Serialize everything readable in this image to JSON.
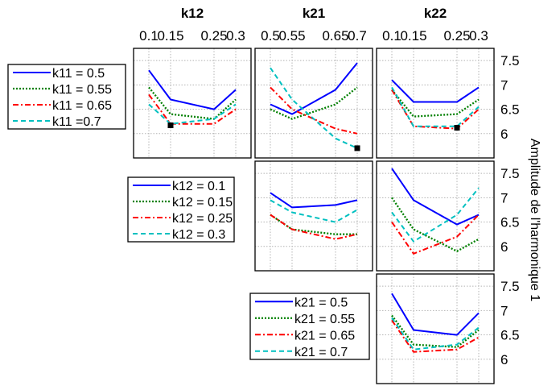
{
  "chart_data": {
    "type": "line",
    "ylabel": "Amplitude de l'harmonique 1",
    "ylim": [
      5.5,
      7.75
    ],
    "yticks": [
      "6",
      "6.5",
      "7",
      "7.5"
    ],
    "grid": true,
    "colors": [
      "#0000ff",
      "#008000",
      "#ff0000",
      "#00c0c0"
    ],
    "columns": [
      {
        "title": "k12",
        "xticks": [
          "0.1",
          "0.15",
          "0.25",
          "0.3"
        ]
      },
      {
        "title": "k21",
        "xticks": [
          "0.5",
          "0.55",
          "0.65",
          "0.7"
        ]
      },
      {
        "title": "k22",
        "xticks": [
          "0.1",
          "0.15",
          "0.25",
          "0.3"
        ]
      }
    ],
    "rows": [
      {
        "legend": {
          "series": [
            "k11 = 0.5",
            "k11 = 0.55",
            "k11 = 0.65",
            "k11 =0.7"
          ]
        }
      },
      {
        "legend": {
          "series": [
            "k12 = 0.1",
            "k12 = 0.15",
            "k12 = 0.25",
            "k12 = 0.3"
          ]
        }
      },
      {
        "legend": {
          "series": [
            "k21 = 0.5",
            "k21 = 0.55",
            "k21 = 0.65",
            "k21 = 0.7"
          ]
        }
      }
    ],
    "panels": [
      {
        "row": 0,
        "col": 0,
        "series": [
          [
            7.3,
            6.7,
            6.5,
            6.9
          ],
          [
            6.95,
            6.4,
            6.3,
            6.7
          ],
          [
            6.8,
            6.2,
            6.2,
            6.5
          ],
          [
            6.6,
            6.2,
            6.3,
            6.6
          ]
        ],
        "marker": [
          1,
          6.17
        ]
      },
      {
        "row": 0,
        "col": 1,
        "series": [
          [
            6.6,
            6.4,
            6.9,
            7.45
          ],
          [
            6.5,
            6.3,
            6.6,
            6.95
          ],
          [
            6.95,
            6.5,
            6.1,
            6.0
          ],
          [
            7.35,
            6.7,
            5.9,
            5.7
          ]
        ],
        "marker": [
          3,
          5.7
        ]
      },
      {
        "row": 0,
        "col": 2,
        "series": [
          [
            7.1,
            6.65,
            6.65,
            6.95
          ],
          [
            6.9,
            6.35,
            6.4,
            6.7
          ],
          [
            6.9,
            6.15,
            6.1,
            6.5
          ],
          [
            6.95,
            6.15,
            6.15,
            6.55
          ]
        ],
        "marker": [
          2,
          6.12
        ]
      },
      {
        "row": 1,
        "col": 1,
        "series": [
          [
            7.1,
            6.8,
            6.85,
            6.95
          ],
          [
            6.65,
            6.35,
            6.25,
            6.25
          ],
          [
            6.65,
            6.35,
            6.15,
            6.25
          ],
          [
            6.95,
            6.7,
            6.5,
            6.75
          ]
        ]
      },
      {
        "row": 1,
        "col": 2,
        "series": [
          [
            7.6,
            6.95,
            6.45,
            6.65
          ],
          [
            7.0,
            6.35,
            5.9,
            6.15
          ],
          [
            6.5,
            5.85,
            6.2,
            6.65
          ],
          [
            6.7,
            6.1,
            6.65,
            7.2
          ]
        ]
      },
      {
        "row": 2,
        "col": 2,
        "series": [
          [
            7.35,
            6.6,
            6.5,
            6.95
          ],
          [
            6.9,
            6.3,
            6.25,
            6.6
          ],
          [
            6.8,
            6.15,
            6.2,
            6.45
          ],
          [
            6.85,
            6.2,
            6.3,
            6.65
          ]
        ]
      }
    ]
  }
}
